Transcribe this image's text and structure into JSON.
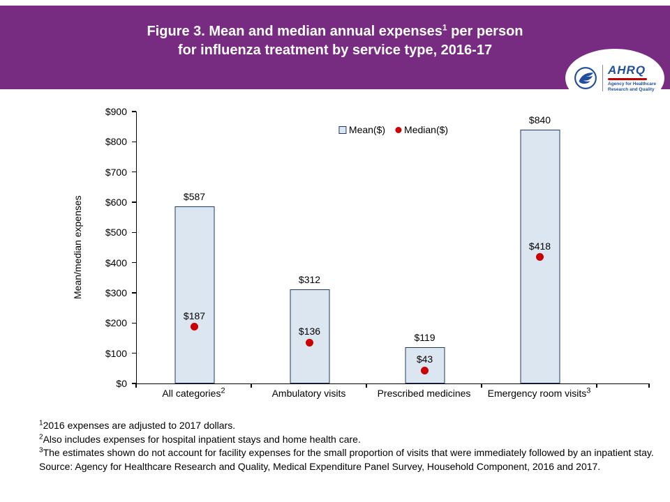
{
  "header": {
    "title_line1_pre": "Figure 3. Mean and median annual expenses",
    "title_sup": "1",
    "title_line1_post": " per person",
    "title_line2": "for influenza treatment by service type, 2016-17",
    "logo": {
      "ahrq_text": "AHRQ",
      "tagline_line1": "Agency for Healthcare",
      "tagline_line2": "Research and Quality"
    }
  },
  "colors": {
    "accent_purple": "#772C82",
    "title_text": "#FFFFFF",
    "bar_fill": "#DCE6F1",
    "bar_border": "#1F3864",
    "median_dot": "#CC0000",
    "logo_blue": "#1F4E9C",
    "logo_red": "#C00000"
  },
  "chart_data": {
    "type": "bar",
    "title": "Mean and median annual expenses per person for influenza treatment by service type, 2016-17",
    "categories": [
      {
        "label": "All categories",
        "sup": "2"
      },
      {
        "label": "Ambulatory visits",
        "sup": ""
      },
      {
        "label": "Prescribed medicines",
        "sup": ""
      },
      {
        "label": "Emergency room visits",
        "sup": "3"
      }
    ],
    "series": [
      {
        "name": "Mean($)",
        "style": "bar",
        "color": "#DCE6F1",
        "border_color": "#1F3864",
        "values": [
          587,
          312,
          119,
          840
        ]
      },
      {
        "name": "Median($)",
        "style": "point",
        "color": "#CC0000",
        "values": [
          187,
          136,
          43,
          418
        ]
      }
    ],
    "xlabel": "",
    "ylabel": "Mean/median expenses",
    "ylim": [
      0,
      900
    ],
    "ytick_step": 100,
    "value_prefix": "$",
    "grid": false,
    "legend_position": "top-center"
  },
  "footnotes": [
    {
      "sup": "1",
      "text": "2016 expenses are adjusted to 2017 dollars."
    },
    {
      "sup": "2",
      "text": "Also includes expenses for hospital inpatient stays and home health care."
    },
    {
      "sup": "3",
      "text": "The estimates shown do not account for facility expenses for the small proportion of visits that were immediately followed by an inpatient stay."
    },
    {
      "sup": "",
      "text": "Source: Agency for Healthcare Research and Quality, Medical Expenditure Panel Survey, Household Component, 2016 and 2017."
    }
  ]
}
